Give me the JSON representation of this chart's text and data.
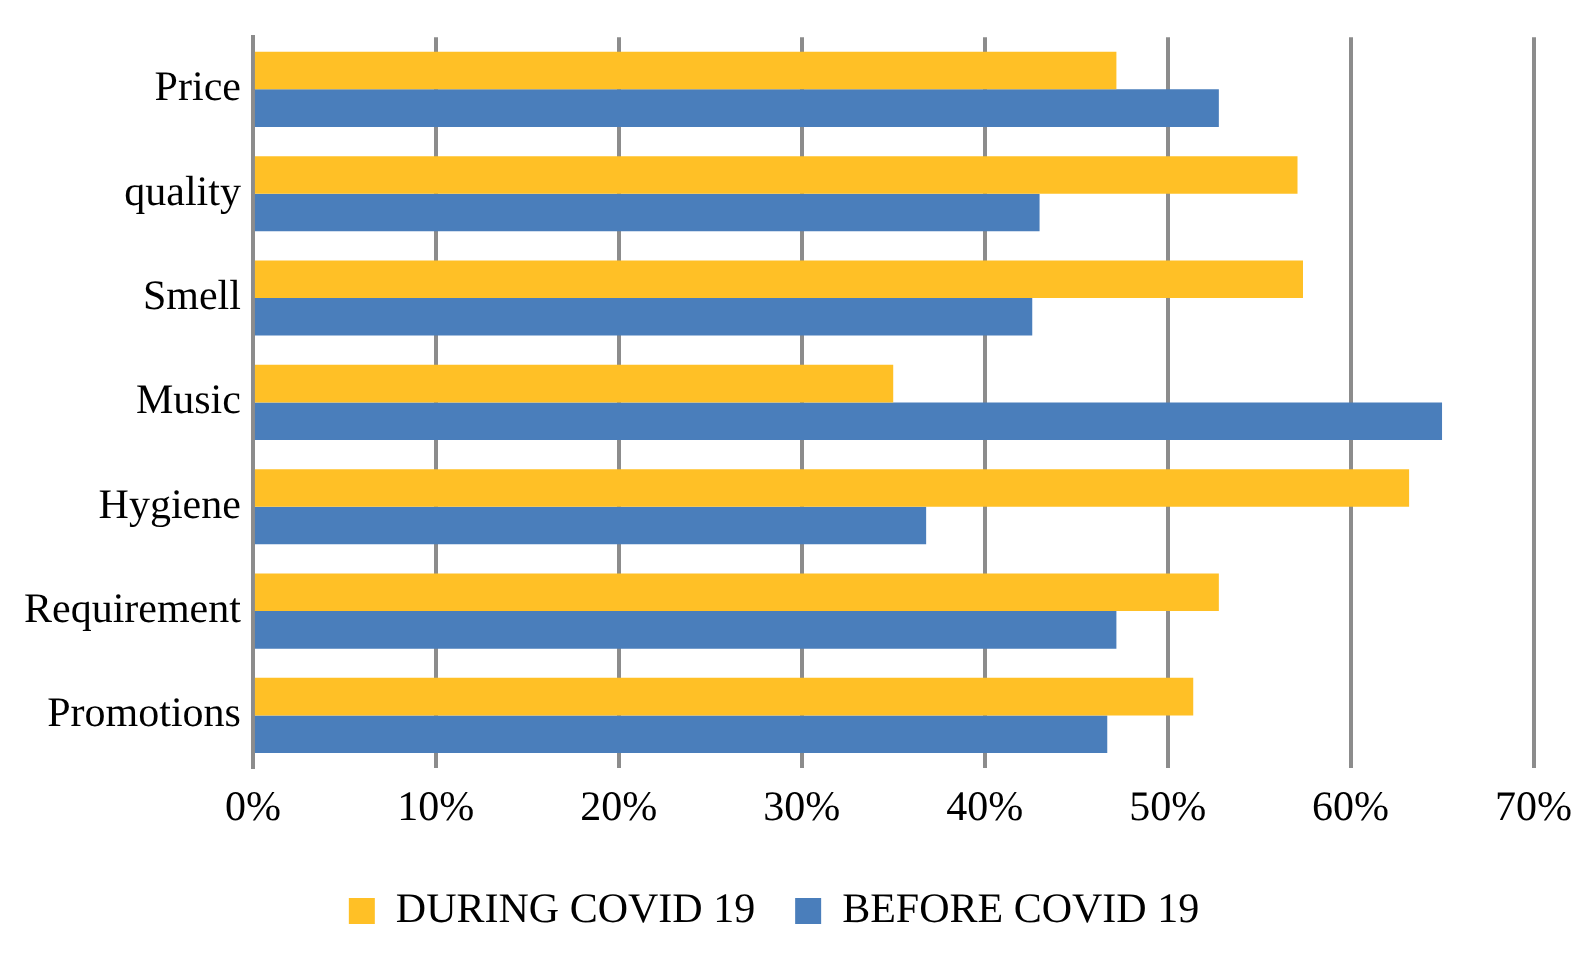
{
  "chart_data": {
    "type": "bar",
    "orientation": "horizontal",
    "categories": [
      "Price",
      "quality",
      "Smell",
      "Music",
      "Hygiene",
      "Requirement",
      "Promotions"
    ],
    "series": [
      {
        "name": "DURING COVID 19",
        "color": "#ffc026",
        "values": [
          47.2,
          57.1,
          57.4,
          35.0,
          63.2,
          52.8,
          51.4
        ]
      },
      {
        "name": "BEFORE COVID 19",
        "color": "#4a7ebb",
        "values": [
          52.8,
          43.0,
          42.6,
          65.0,
          36.8,
          47.2,
          46.7
        ]
      }
    ],
    "xlim": [
      0,
      70
    ],
    "xticks": [
      {
        "value": 0,
        "label": "0%"
      },
      {
        "value": 10,
        "label": "10%"
      },
      {
        "value": 20,
        "label": "20%"
      },
      {
        "value": 30,
        "label": "30%"
      },
      {
        "value": 40,
        "label": "40%"
      },
      {
        "value": 50,
        "label": "50%"
      },
      {
        "value": 60,
        "label": "60%"
      },
      {
        "value": 70,
        "label": "70%"
      }
    ],
    "grid": "x",
    "legend": "bottom"
  }
}
